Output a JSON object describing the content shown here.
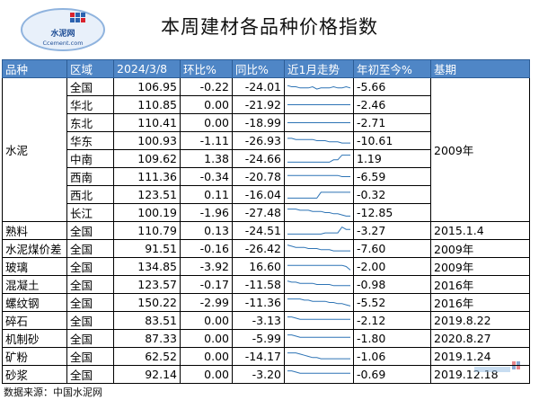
{
  "logo": {
    "name": "水泥网",
    "domain": "Ccement.com"
  },
  "title": "本周建材各品种价格指数",
  "headers": [
    "品种",
    "区域",
    "2024/3/8",
    "环比%",
    "同比%",
    "近1月走势",
    "年初至今%",
    "基期"
  ],
  "rows": [
    {
      "product": "水泥",
      "region": "全国",
      "value": "106.95",
      "mom": "-0.22",
      "yoy": "-24.01",
      "ytd": "-5.66",
      "base": "2009年",
      "trend": [
        6,
        5,
        5,
        4,
        4,
        4,
        5,
        3,
        4,
        4,
        4,
        5,
        4,
        4,
        5,
        4
      ]
    },
    {
      "product": "",
      "region": "华北",
      "value": "110.85",
      "mom": "0.00",
      "yoy": "-21.92",
      "ytd": "-2.46",
      "base": "",
      "trend": [
        5,
        5,
        5,
        5,
        5,
        5,
        5,
        5,
        5,
        5,
        5,
        5,
        5,
        5,
        5,
        5
      ]
    },
    {
      "product": "",
      "region": "东北",
      "value": "110.41",
      "mom": "0.00",
      "yoy": "-18.99",
      "ytd": "-2.71",
      "base": "",
      "trend": [
        5,
        5,
        5,
        5,
        5,
        5,
        5,
        5,
        5,
        5,
        5,
        5,
        5,
        5,
        5,
        5
      ]
    },
    {
      "product": "",
      "region": "华东",
      "value": "100.93",
      "mom": "-1.11",
      "yoy": "-26.93",
      "ytd": "-10.61",
      "base": "",
      "trend": [
        7,
        7,
        6,
        6,
        6,
        6,
        6,
        5,
        5,
        5,
        4,
        4,
        4,
        3,
        3,
        3
      ]
    },
    {
      "product": "",
      "region": "中南",
      "value": "109.62",
      "mom": "1.38",
      "yoy": "-24.66",
      "ytd": "1.19",
      "base": "",
      "trend": [
        2,
        2,
        2,
        2,
        2,
        2,
        2,
        2,
        2,
        2,
        2,
        4,
        4,
        8,
        8,
        8
      ]
    },
    {
      "product": "",
      "region": "西南",
      "value": "111.36",
      "mom": "-0.34",
      "yoy": "-20.78",
      "ytd": "-6.59",
      "base": "",
      "trend": [
        6,
        6,
        6,
        6,
        6,
        6,
        6,
        6,
        6,
        6,
        6,
        6,
        6,
        5,
        5,
        5
      ]
    },
    {
      "product": "",
      "region": "西北",
      "value": "123.51",
      "mom": "0.11",
      "yoy": "-16.04",
      "ytd": "-0.32",
      "base": "",
      "trend": [
        2,
        2,
        2,
        2,
        2,
        2,
        2,
        2,
        7,
        7,
        7,
        7,
        7,
        7,
        7,
        7
      ]
    },
    {
      "product": "",
      "region": "长江",
      "value": "100.19",
      "mom": "-1.96",
      "yoy": "-27.48",
      "ytd": "-12.85",
      "base": "",
      "trend": [
        8,
        8,
        8,
        7,
        7,
        7,
        6,
        6,
        6,
        5,
        5,
        4,
        4,
        3,
        2,
        2
      ]
    },
    {
      "product": "熟料",
      "region": "全国",
      "value": "110.79",
      "mom": "0.13",
      "yoy": "-24.51",
      "ytd": "-3.27",
      "base": "2015.1.4",
      "trend": [
        2,
        2,
        2,
        2,
        2,
        2,
        2,
        2,
        2,
        3,
        3,
        3,
        3,
        8,
        6,
        6
      ]
    },
    {
      "product": "水泥煤价差",
      "region": "全国",
      "value": "91.51",
      "mom": "-0.16",
      "yoy": "-26.42",
      "ytd": "-7.60",
      "base": "2009年",
      "trend": [
        8,
        7,
        6,
        6,
        6,
        5,
        5,
        5,
        4,
        4,
        4,
        3,
        3,
        3,
        3,
        3
      ]
    },
    {
      "product": "玻璃",
      "region": "全国",
      "value": "134.85",
      "mom": "-3.92",
      "yoy": "16.60",
      "ytd": "-2.00",
      "base": "2009年",
      "trend": [
        6,
        6,
        6,
        6,
        6,
        6,
        6,
        6,
        6,
        6,
        6,
        6,
        6,
        6,
        5,
        2
      ]
    },
    {
      "product": "混凝土",
      "region": "全国",
      "value": "123.57",
      "mom": "-0.17",
      "yoy": "-11.58",
      "ytd": "-0.98",
      "base": "2016年",
      "trend": [
        8,
        7,
        7,
        6,
        6,
        6,
        6,
        5,
        5,
        5,
        5,
        4,
        4,
        4,
        4,
        4
      ]
    },
    {
      "product": "螺纹钢",
      "region": "全国",
      "value": "150.22",
      "mom": "-2.99",
      "yoy": "-11.36",
      "ytd": "-5.52",
      "base": "2016年",
      "trend": [
        8,
        8,
        8,
        8,
        7,
        7,
        6,
        6,
        6,
        6,
        5,
        5,
        4,
        4,
        3,
        2
      ]
    },
    {
      "product": "碎石",
      "region": "全国",
      "value": "83.51",
      "mom": "0.00",
      "yoy": "-3.13",
      "ytd": "-2.12",
      "base": "2019.8.22",
      "trend": [
        8,
        8,
        7,
        6,
        6,
        6,
        6,
        6,
        6,
        6,
        6,
        6,
        6,
        6,
        6,
        6
      ]
    },
    {
      "product": "机制砂",
      "region": "全国",
      "value": "87.33",
      "mom": "0.00",
      "yoy": "-5.99",
      "ytd": "-1.80",
      "base": "2020.8.27",
      "trend": [
        8,
        8,
        7,
        6,
        6,
        6,
        6,
        6,
        6,
        6,
        6,
        6,
        6,
        6,
        6,
        6
      ]
    },
    {
      "product": "矿粉",
      "region": "全国",
      "value": "62.52",
      "mom": "0.00",
      "yoy": "-14.17",
      "ytd": "-1.06",
      "base": "2019.1.24",
      "trend": [
        8,
        8,
        8,
        7,
        6,
        5,
        4,
        4,
        3,
        3,
        3,
        3,
        3,
        3,
        3,
        3
      ]
    },
    {
      "product": "砂浆",
      "region": "全国",
      "value": "92.14",
      "mom": "0.00",
      "yoy": "-3.20",
      "ytd": "-0.69",
      "base": "2019.12.18",
      "trend": [
        8,
        8,
        7,
        6,
        6,
        6,
        6,
        6,
        6,
        6,
        6,
        6,
        6,
        6,
        6,
        6
      ]
    }
  ],
  "footer": "数据来源：中国水泥网",
  "colors": {
    "header_bg": "#4f86c6",
    "spark": "#2e74b5"
  }
}
